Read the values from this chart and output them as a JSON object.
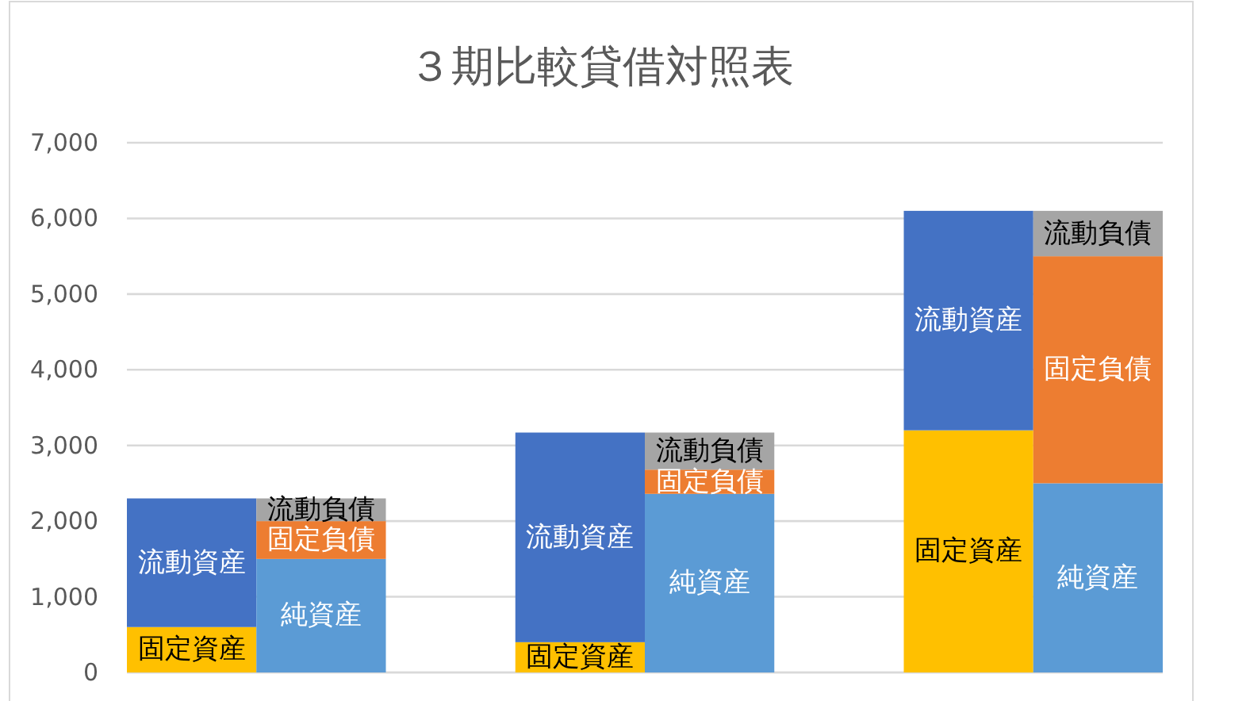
{
  "chart_data": {
    "type": "bar",
    "title": "３期比較貸借対照表",
    "stacked": true,
    "categories": [
      null,
      null,
      null,
      null,
      null,
      null,
      null,
      null
    ],
    "series": [
      {
        "name": "固定資産",
        "color": "#ffc000",
        "values": [
          600,
          null,
          null,
          400,
          null,
          null,
          3200,
          null
        ]
      },
      {
        "name": "流動資産",
        "color": "#4472c4",
        "values": [
          1700,
          null,
          null,
          2770,
          null,
          null,
          2900,
          null
        ]
      },
      {
        "name": "純資産",
        "color": "#5b9bd5",
        "values": [
          null,
          1500,
          null,
          null,
          2360,
          null,
          null,
          2500
        ]
      },
      {
        "name": "固定負債",
        "color": "#ed7d31",
        "values": [
          null,
          500,
          null,
          null,
          320,
          null,
          null,
          3000
        ]
      },
      {
        "name": "流動負債",
        "color": "#a5a5a5",
        "values": [
          null,
          300,
          null,
          null,
          490,
          null,
          null,
          600
        ]
      }
    ],
    "ylim": [
      0,
      7000
    ],
    "yticks": [
      0,
      {
        "value": 1000,
        "label": "1,000"
      },
      {
        "value": 2000,
        "label": "2,000"
      },
      {
        "value": 3000,
        "label": "3,000"
      },
      {
        "value": 4000,
        "label": "4,000"
      },
      {
        "value": 5000,
        "label": "5,000"
      },
      {
        "value": 6000,
        "label": "6,000"
      },
      {
        "value": 7000,
        "label": "7,000"
      }
    ],
    "grid": "y"
  }
}
